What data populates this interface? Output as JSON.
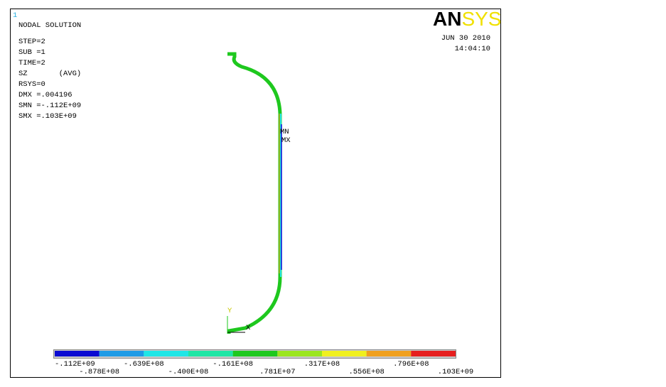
{
  "window_number": "1",
  "logo": {
    "left": "AN",
    "right": "SYS"
  },
  "date": "JUN 30 2010",
  "time": "14:04:10",
  "info_lines": [
    "NODAL SOLUTION",
    "STEP=2",
    "SUB =1",
    "TIME=2",
    "SZ       (AVG)",
    "RSYS=0",
    "DMX =.004196",
    "SMN =-.112E+09",
    "SMX =.103E+09"
  ],
  "markers": {
    "min": "MN",
    "max": "MX"
  },
  "axes": {
    "y": "Y",
    "x": "X"
  },
  "legend": {
    "colors": [
      "#0a0ad2",
      "#1e9be6",
      "#1ee6e6",
      "#1ee6a5",
      "#1ec81e",
      "#9be61e",
      "#f0f01e",
      "#f0a01e",
      "#e61e1e"
    ],
    "labels": [
      "-.112E+09",
      "-.878E+08",
      "-.639E+08",
      "-.400E+08",
      "-.161E+08",
      ".781E+07",
      ".317E+08",
      ".556E+08",
      ".796E+08",
      ".103E+09"
    ]
  }
}
